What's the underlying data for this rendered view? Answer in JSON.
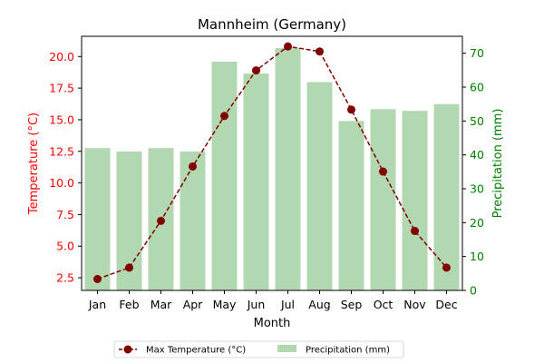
{
  "chart_data": {
    "type": "bar+line",
    "title": "Mannheim (Germany)",
    "xlabel": "Month",
    "ylabel_left": "Temperature (°C)",
    "ylabel_right": "Precipitation (mm)",
    "categories": [
      "Jan",
      "Feb",
      "Mar",
      "Apr",
      "May",
      "Jun",
      "Jul",
      "Aug",
      "Sep",
      "Oct",
      "Nov",
      "Dec"
    ],
    "series": [
      {
        "name": "Max Temperature (°C)",
        "type": "line",
        "axis": "left",
        "color": "#800000",
        "values": [
          2.4,
          3.3,
          7.0,
          11.3,
          15.3,
          18.9,
          20.8,
          20.4,
          15.8,
          10.9,
          6.2,
          3.3
        ]
      },
      {
        "name": "Precipitation (mm)",
        "type": "bar",
        "axis": "right",
        "color": "#b1d8b1",
        "values": [
          42,
          41,
          42,
          41,
          67.5,
          64,
          71.5,
          61.5,
          50,
          53.5,
          53,
          55
        ]
      }
    ],
    "ylim_left": [
      1.5,
      21.6
    ],
    "yticks_left": [
      "2.5",
      "5.0",
      "7.5",
      "10.0",
      "12.5",
      "15.0",
      "17.5",
      "20.0"
    ],
    "ylim_right": [
      0,
      75
    ],
    "yticks_right": [
      "0",
      "10",
      "20",
      "30",
      "40",
      "50",
      "60",
      "70"
    ],
    "left_axis_color": "#ff0000",
    "right_axis_color": "#008000",
    "grid": false,
    "legend_position": "bottom-center"
  }
}
